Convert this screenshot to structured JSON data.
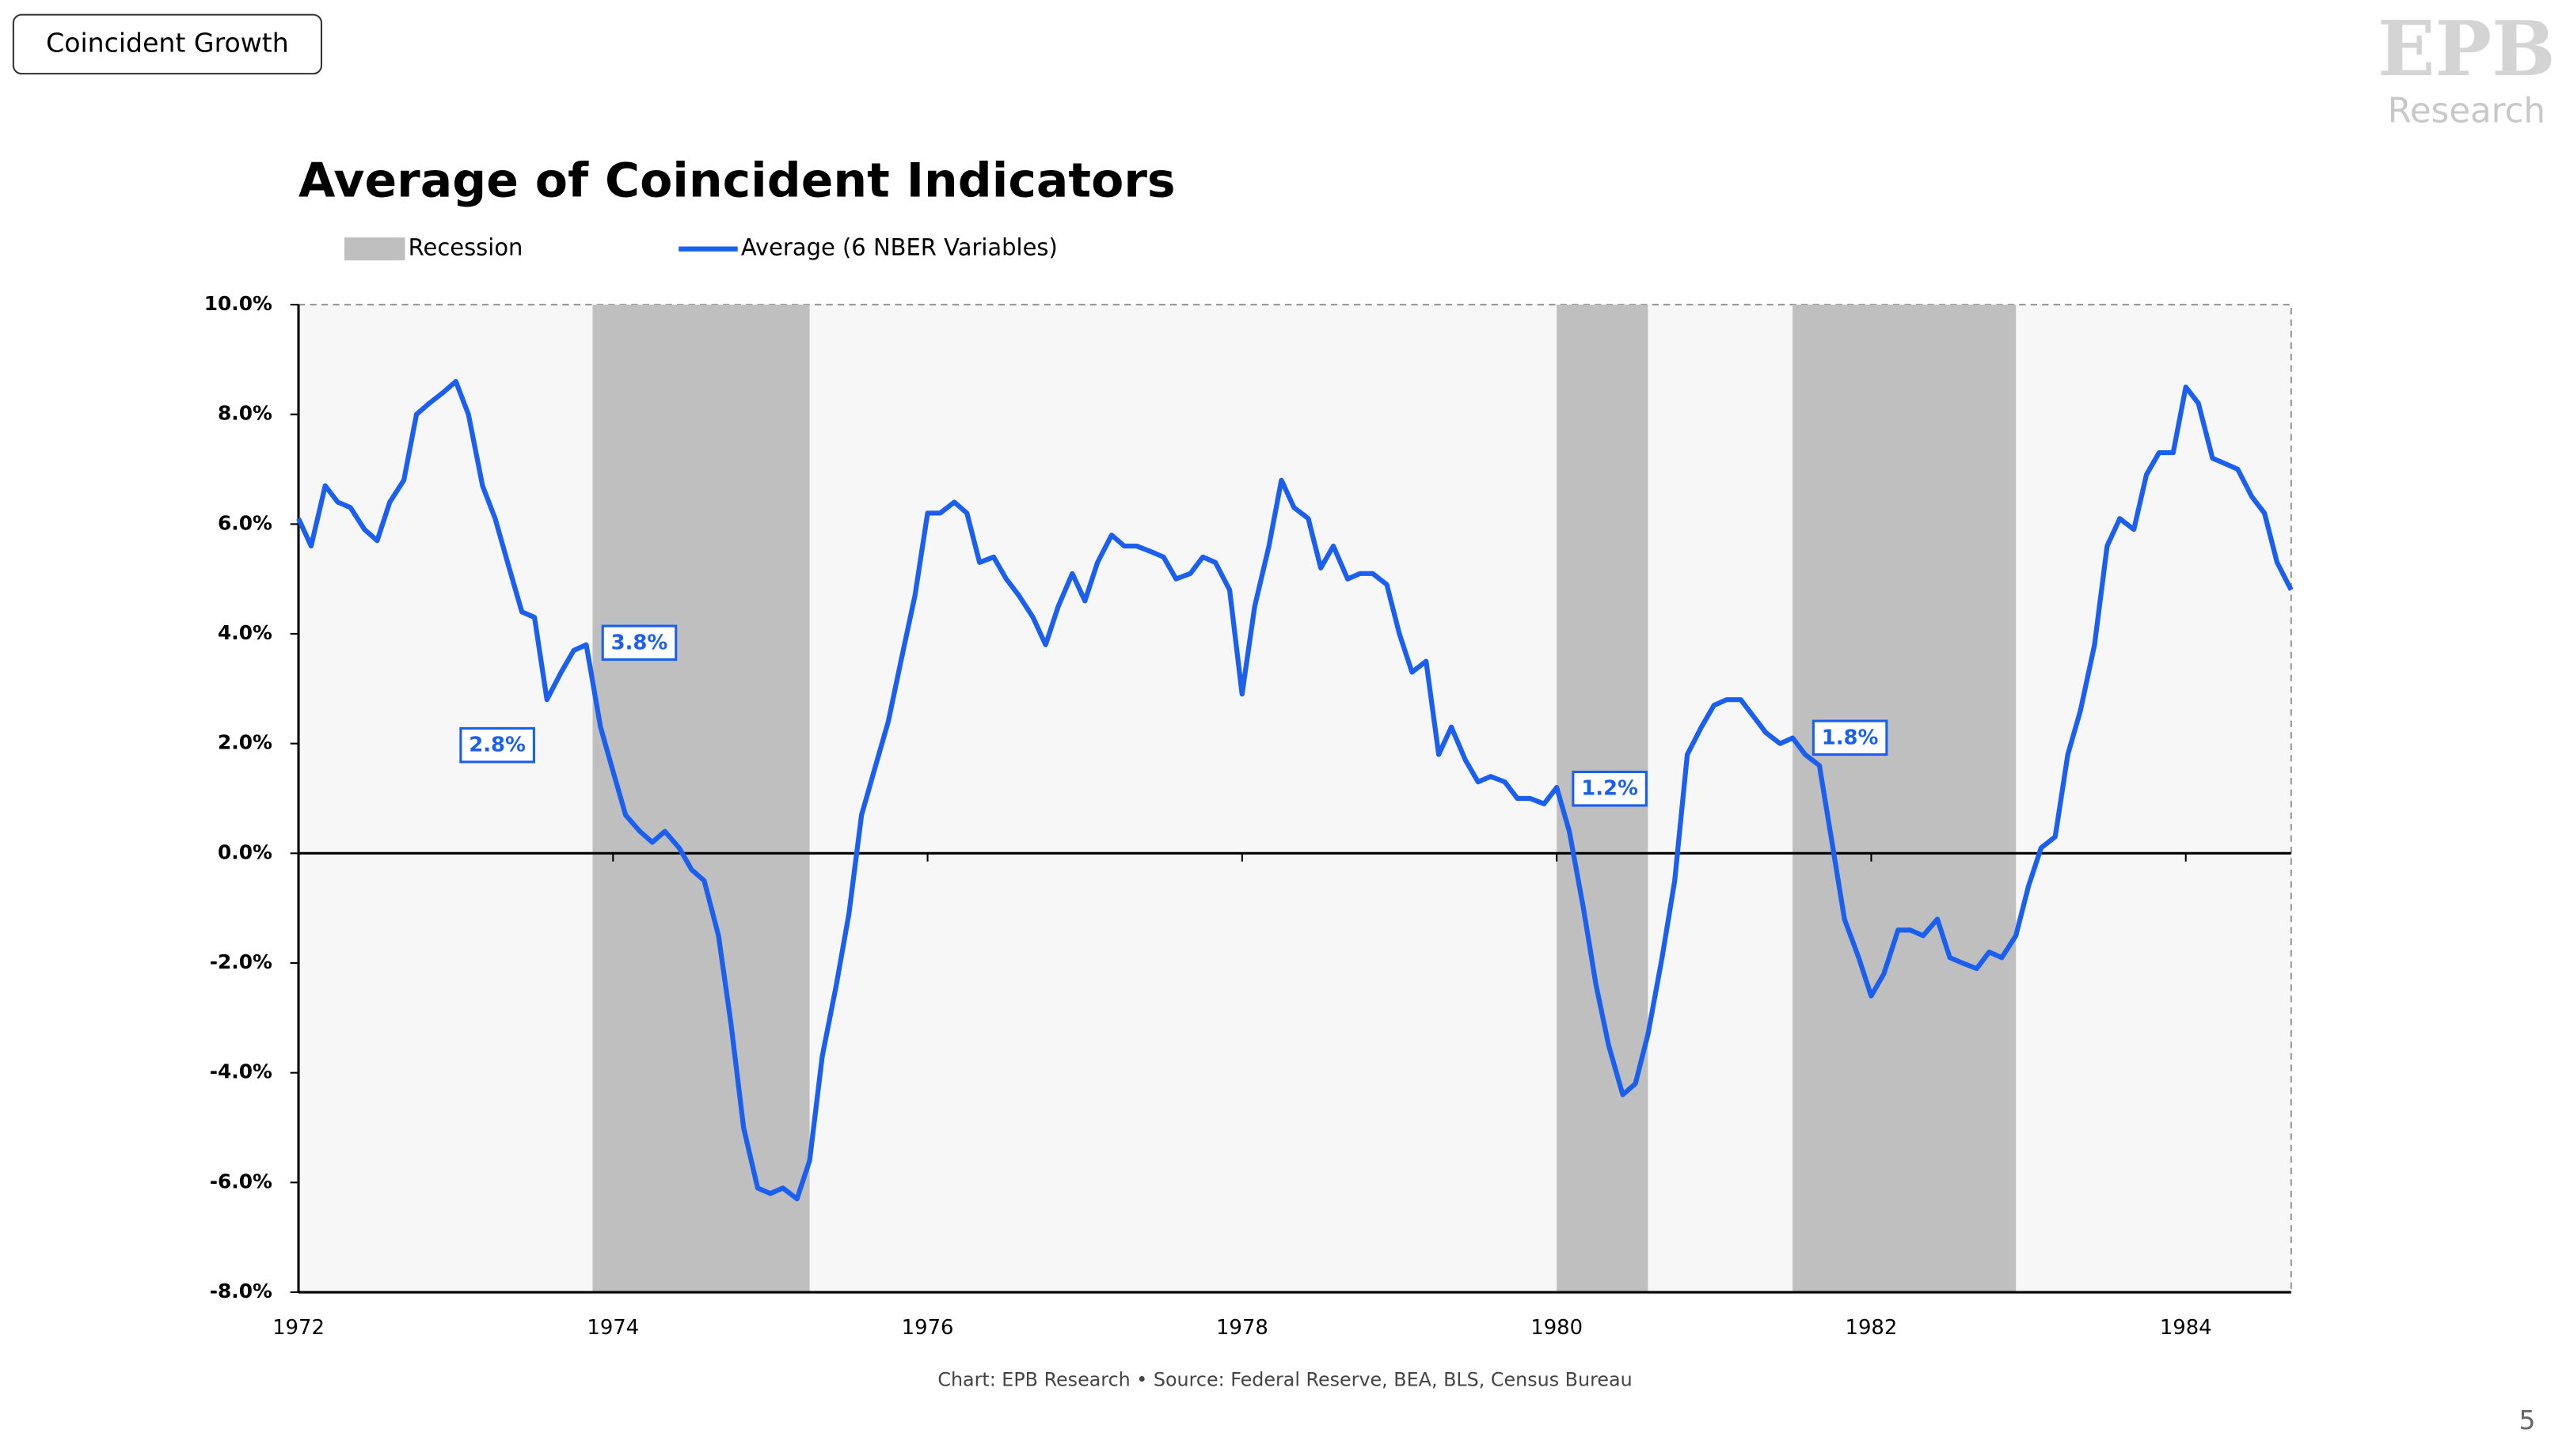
{
  "badge": "Coincident Growth",
  "logo": {
    "mark": "EPB",
    "text": "Research"
  },
  "page_number": "5",
  "chart_data": {
    "type": "line",
    "title": "Average of Coincident Indicators",
    "source": "Chart: EPB Research  •  Source: Federal Reserve, BEA, BLS, Census Bureau",
    "recession_name": "Recession",
    "recession_color": "#bfbfbf",
    "recessions": [
      [
        1973.87,
        1975.25
      ],
      [
        1980.0,
        1980.58
      ],
      [
        1981.5,
        1982.92
      ]
    ],
    "x": [
      1972,
      1972.08,
      1972.17,
      1972.25,
      1972.33,
      1972.42,
      1972.5,
      1972.58,
      1972.67,
      1972.75,
      1972.83,
      1972.92,
      1973,
      1973.08,
      1973.17,
      1973.25,
      1973.33,
      1973.42,
      1973.5,
      1973.58,
      1973.67,
      1973.75,
      1973.83,
      1973.92,
      1974,
      1974.08,
      1974.17,
      1974.25,
      1974.33,
      1974.42,
      1974.5,
      1974.58,
      1974.67,
      1974.75,
      1974.83,
      1974.92,
      1975,
      1975.08,
      1975.17,
      1975.25,
      1975.33,
      1975.42,
      1975.5,
      1975.58,
      1975.67,
      1975.75,
      1975.83,
      1975.92,
      1976,
      1976.08,
      1976.17,
      1976.25,
      1976.33,
      1976.42,
      1976.5,
      1976.58,
      1976.67,
      1976.75,
      1976.83,
      1976.92,
      1977,
      1977.08,
      1977.17,
      1977.25,
      1977.33,
      1977.42,
      1977.5,
      1977.58,
      1977.67,
      1977.75,
      1977.83,
      1977.92,
      1978,
      1978.08,
      1978.17,
      1978.25,
      1978.33,
      1978.42,
      1978.5,
      1978.58,
      1978.67,
      1978.75,
      1978.83,
      1978.92,
      1979,
      1979.08,
      1979.17,
      1979.25,
      1979.33,
      1979.42,
      1979.5,
      1979.58,
      1979.67,
      1979.75,
      1979.83,
      1979.92,
      1980,
      1980.08,
      1980.17,
      1980.25,
      1980.33,
      1980.42,
      1980.5,
      1980.58,
      1980.67,
      1980.75,
      1980.83,
      1980.92,
      1981,
      1981.08,
      1981.17,
      1981.25,
      1981.33,
      1981.42,
      1981.5,
      1981.58,
      1981.67,
      1981.75,
      1981.83,
      1981.92,
      1982,
      1982.08,
      1982.17,
      1982.25,
      1982.33,
      1982.42,
      1982.5,
      1982.58,
      1982.67,
      1982.75,
      1982.83,
      1982.92,
      1983,
      1983.08,
      1983.17,
      1983.25,
      1983.33,
      1983.42,
      1983.5,
      1983.58,
      1983.67,
      1983.75,
      1983.83,
      1983.92,
      1984,
      1984.08,
      1984.17,
      1984.25,
      1984.33,
      1984.42,
      1984.5,
      1984.58,
      1984.67
    ],
    "series": [
      {
        "name": "Average (6 NBER Variables)",
        "color": "#1a5ff0",
        "values": [
          6.1,
          5.6,
          6.7,
          6.4,
          6.3,
          5.9,
          5.7,
          6.4,
          6.8,
          8.0,
          8.2,
          8.4,
          8.6,
          8.0,
          6.7,
          6.1,
          5.3,
          4.4,
          4.3,
          2.8,
          3.3,
          3.7,
          3.8,
          2.3,
          1.5,
          0.7,
          0.4,
          0.2,
          0.4,
          0.1,
          -0.3,
          -0.5,
          -1.5,
          -3.1,
          -5.0,
          -6.1,
          -6.2,
          -6.1,
          -6.3,
          -5.6,
          -3.7,
          -2.4,
          -1.1,
          0.7,
          1.6,
          2.4,
          3.5,
          4.7,
          6.2,
          6.2,
          6.4,
          6.2,
          5.3,
          5.4,
          5.0,
          4.7,
          4.3,
          3.8,
          4.5,
          5.1,
          4.6,
          5.3,
          5.8,
          5.6,
          5.6,
          5.5,
          5.4,
          5.0,
          5.1,
          5.4,
          5.3,
          4.8,
          2.9,
          4.5,
          5.6,
          6.8,
          6.3,
          6.1,
          5.2,
          5.6,
          5.0,
          5.1,
          5.1,
          4.9,
          4.0,
          3.3,
          3.5,
          1.8,
          2.3,
          1.7,
          1.3,
          1.4,
          1.3,
          1.0,
          1.0,
          0.9,
          1.2,
          0.4,
          -1.0,
          -2.4,
          -3.5,
          -4.4,
          -4.2,
          -3.3,
          -1.9,
          -0.5,
          1.8,
          2.3,
          2.7,
          2.8,
          2.8,
          2.5,
          2.2,
          2.0,
          2.1,
          1.8,
          1.6,
          0.2,
          -1.2,
          -1.9,
          -2.6,
          -2.2,
          -1.4,
          -1.4,
          -1.5,
          -1.2,
          -1.9,
          -2.0,
          -2.1,
          -1.8,
          -1.9,
          -1.5,
          -0.6,
          0.1,
          0.3,
          1.8,
          2.6,
          3.8,
          5.6,
          6.1,
          5.9,
          6.9,
          7.3,
          7.3,
          8.5,
          8.2,
          7.2,
          7.1,
          7.0,
          6.5,
          6.2,
          5.3,
          4.8
        ]
      }
    ],
    "annotations": [
      {
        "text": "2.8%",
        "x": 1973.58,
        "value": 2.8
      },
      {
        "text": "3.8%",
        "x": 1973.83,
        "value": 3.8
      },
      {
        "text": "1.2%",
        "x": 1980.0,
        "value": 1.2
      },
      {
        "text": "1.8%",
        "x": 1981.58,
        "value": 1.8
      }
    ],
    "xlim": [
      1972,
      1984.67
    ],
    "xticks": [
      1972,
      1974,
      1976,
      1978,
      1980,
      1982,
      1984
    ],
    "ylim": [
      -8,
      10
    ],
    "yticks": [
      {
        "value": -8,
        "label": "-8.0%"
      },
      {
        "value": -6,
        "label": "-6.0%"
      },
      {
        "value": -4,
        "label": "-4.0%"
      },
      {
        "value": -2,
        "label": "-2.0%"
      },
      {
        "value": 0,
        "label": "0.0%"
      },
      {
        "value": 2,
        "label": "2.0%"
      },
      {
        "value": 4,
        "label": "4.0%"
      },
      {
        "value": 6,
        "label": "6.0%"
      },
      {
        "value": 8,
        "label": "8.0%"
      },
      {
        "value": 10,
        "label": "10.0%"
      }
    ]
  }
}
